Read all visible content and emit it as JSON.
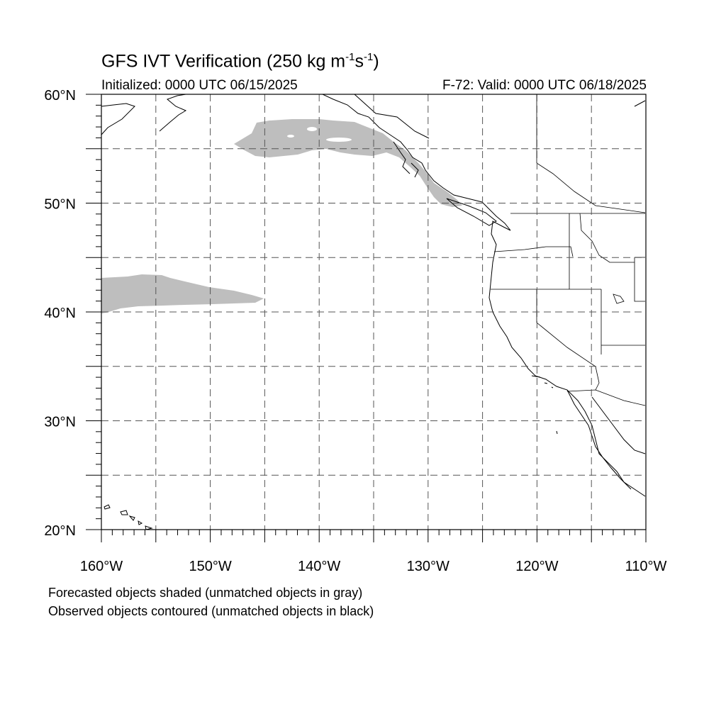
{
  "title": {
    "main": "GFS IVT Verification (250 kg m",
    "exp1": "-1",
    "mid": "s",
    "exp2": "-1",
    "end": ")"
  },
  "subtitle_left": "Initialized: 0000 UTC 06/15/2025",
  "subtitle_right": "F-72: Valid: 0000 UTC 06/18/2025",
  "notes": [
    "Forecasted objects shaded (unmatched objects in gray)",
    "Observed objects contoured (unmatched objects in black)"
  ],
  "map": {
    "lon_range": [
      -160,
      -110
    ],
    "lat_range": [
      20,
      60
    ],
    "lon_labels": [
      "160°W",
      "150°W",
      "140°W",
      "130°W",
      "120°W",
      "110°W"
    ],
    "lat_labels": [
      "20°N",
      "30°N",
      "40°N",
      "50°N",
      "60°N"
    ],
    "gridlines": "dashed every 5°",
    "colors": {
      "forecast_unmatched": "#bebebe",
      "outline": "#000000",
      "grid": "#555555"
    }
  }
}
